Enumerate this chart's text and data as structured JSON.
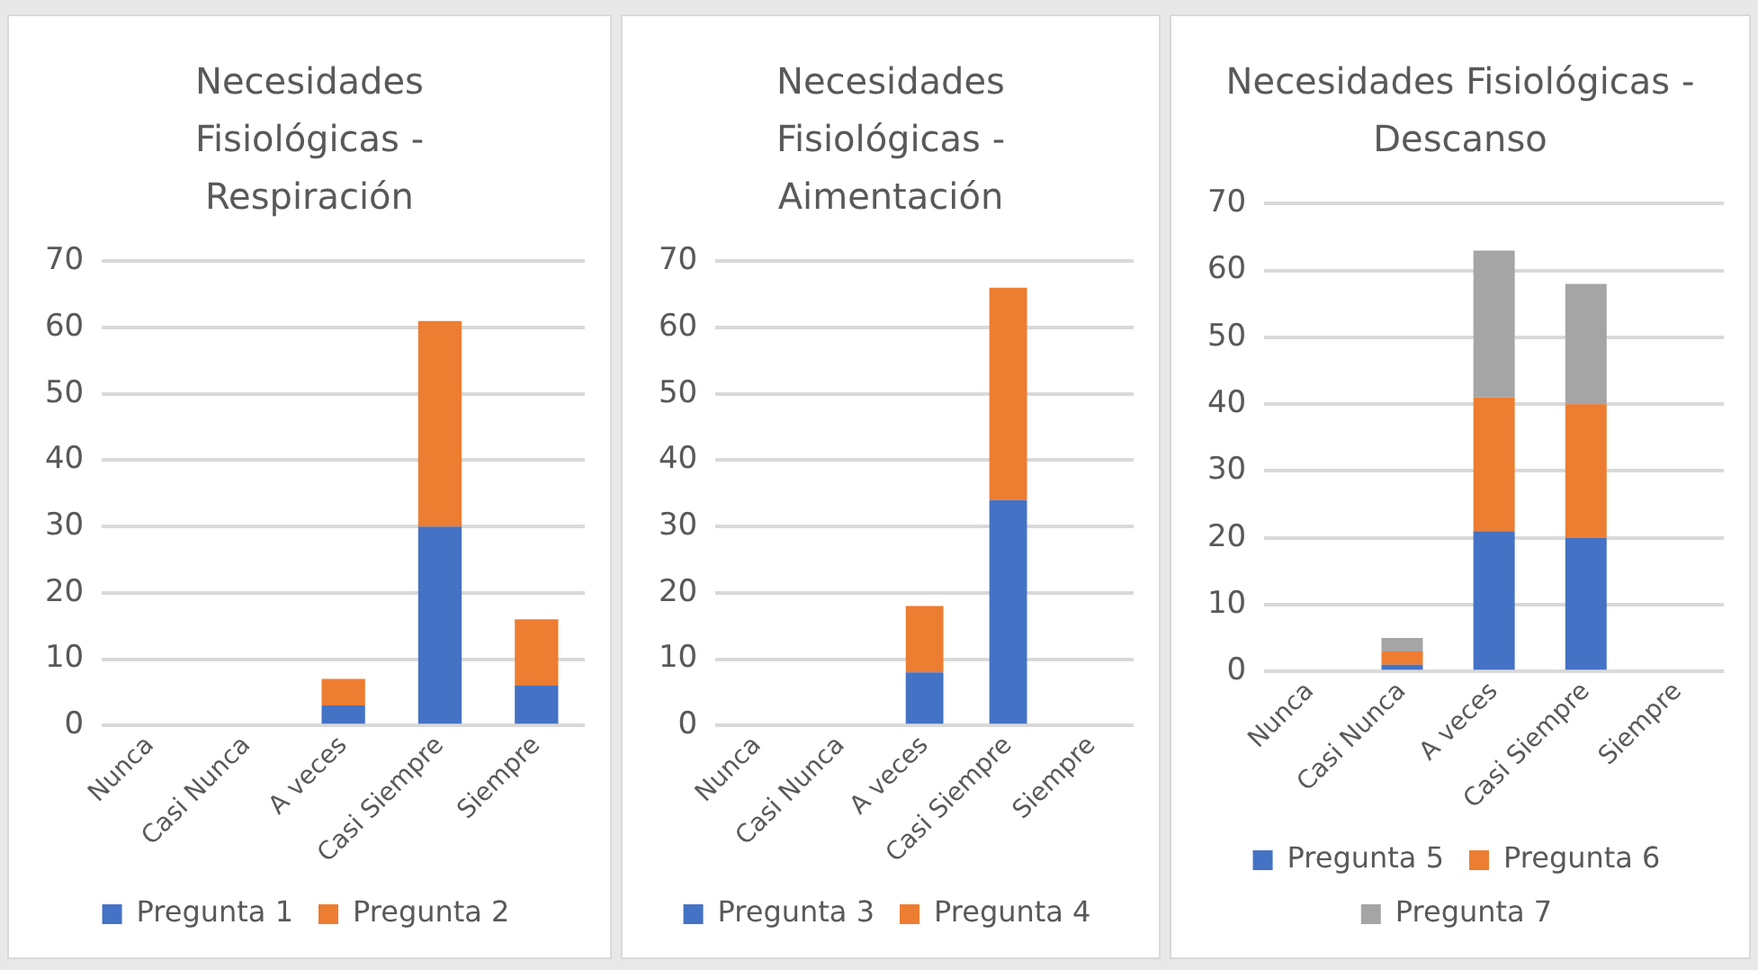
{
  "chart_data": [
    {
      "type": "bar",
      "title": "Necesidades Fisiológicas - Respiración",
      "categories": [
        "Nunca",
        "Casi Nunca",
        "A veces",
        "Casi Siempre",
        "Siempre"
      ],
      "stacked": true,
      "series": [
        {
          "name": "Pregunta 1",
          "color": "#4472c4",
          "values": [
            0,
            0,
            3,
            30,
            6
          ]
        },
        {
          "name": "Pregunta 2",
          "color": "#ed7d31",
          "values": [
            0,
            0,
            4,
            31,
            10
          ]
        }
      ],
      "ylim": [
        0,
        70
      ],
      "yticks": [
        0,
        10,
        20,
        30,
        40,
        50,
        60,
        70
      ],
      "grid": "y",
      "legend": "bottom"
    },
    {
      "type": "bar",
      "title": "Necesidades Fisiológicas - Aimentación",
      "categories": [
        "Nunca",
        "Casi Nunca",
        "A veces",
        "Casi Siempre",
        "Siempre"
      ],
      "stacked": true,
      "series": [
        {
          "name": "Pregunta 3",
          "color": "#4472c4",
          "values": [
            0,
            0,
            8,
            34,
            0
          ]
        },
        {
          "name": "Pregunta 4",
          "color": "#ed7d31",
          "values": [
            0,
            0,
            10,
            32,
            0
          ]
        }
      ],
      "ylim": [
        0,
        70
      ],
      "yticks": [
        0,
        10,
        20,
        30,
        40,
        50,
        60,
        70
      ],
      "grid": "y",
      "legend": "bottom"
    },
    {
      "type": "bar",
      "title": "Necesidades Fisiológicas - Descanso",
      "categories": [
        "Nunca",
        "Casi Nunca",
        "A veces",
        "Casi Siempre",
        "Siempre"
      ],
      "stacked": true,
      "series": [
        {
          "name": "Pregunta 5",
          "color": "#4472c4",
          "values": [
            0,
            1,
            21,
            20,
            0
          ]
        },
        {
          "name": "Pregunta 6",
          "color": "#ed7d31",
          "values": [
            0,
            2,
            20,
            20,
            0
          ]
        },
        {
          "name": "Pregunta 7",
          "color": "#a5a5a5",
          "values": [
            0,
            2,
            22,
            18,
            0
          ]
        }
      ],
      "ylim": [
        0,
        70
      ],
      "yticks": [
        0,
        10,
        20,
        30,
        40,
        50,
        60,
        70
      ],
      "grid": "y",
      "legend": "bottom"
    }
  ]
}
